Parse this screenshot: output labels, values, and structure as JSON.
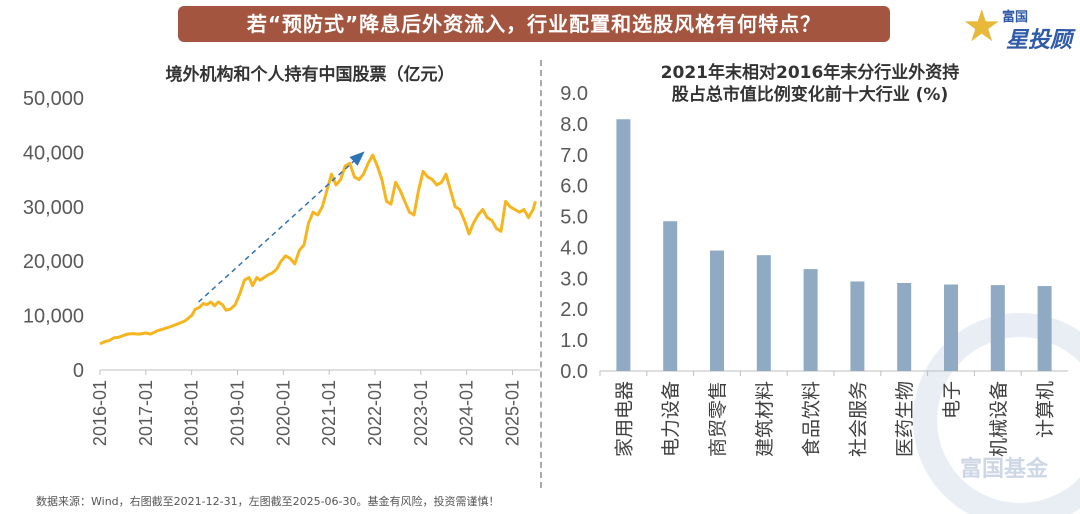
{
  "header": {
    "banner": "若“预防式”降息后外资流入，行业配置和选股风格有何特点？",
    "logo_top": "富国",
    "logo_bottom": "星投顾",
    "watermark": "富国基金"
  },
  "footer": {
    "source": "数据来源：Wind，右图截至2021-12-31，左图截至2025-06-30。基金有风险，投资需谨慎！"
  },
  "colors": {
    "line": "#f6b51e",
    "bar": "#8faac2",
    "arrow": "#2e74b5",
    "banner": "#a4553f"
  },
  "chart_data": [
    {
      "type": "line",
      "title": "境外机构和个人持有中国股票（亿元）",
      "x_ticks": [
        "2016-01",
        "2017-01",
        "2018-01",
        "2019-01",
        "2020-01",
        "2021-01",
        "2022-01",
        "2023-01",
        "2024-01",
        "2025-01"
      ],
      "ylim": [
        0,
        50000
      ],
      "y_ticks": [
        "0",
        "10,000",
        "20,000",
        "30,000",
        "40,000",
        "50,000"
      ],
      "y_tick_values": [
        0,
        10000,
        20000,
        30000,
        40000,
        50000
      ],
      "series": [
        {
          "name": "境外机构和个人持有中国股票",
          "points": [
            [
              2016.0,
              4800
            ],
            [
              2016.1,
              5200
            ],
            [
              2016.2,
              5400
            ],
            [
              2016.3,
              5900
            ],
            [
              2016.4,
              6000
            ],
            [
              2016.5,
              6300
            ],
            [
              2016.6,
              6600
            ],
            [
              2016.7,
              6700
            ],
            [
              2016.85,
              6600
            ],
            [
              2017.0,
              6800
            ],
            [
              2017.1,
              6600
            ],
            [
              2017.25,
              7200
            ],
            [
              2017.4,
              7600
            ],
            [
              2017.55,
              8000
            ],
            [
              2017.7,
              8500
            ],
            [
              2017.85,
              9000
            ],
            [
              2018.0,
              10000
            ],
            [
              2018.08,
              11200
            ],
            [
              2018.17,
              11500
            ],
            [
              2018.25,
              12200
            ],
            [
              2018.33,
              12000
            ],
            [
              2018.42,
              12500
            ],
            [
              2018.5,
              11800
            ],
            [
              2018.58,
              12500
            ],
            [
              2018.67,
              12000
            ],
            [
              2018.75,
              11000
            ],
            [
              2018.85,
              11200
            ],
            [
              2018.95,
              12000
            ],
            [
              2019.05,
              14000
            ],
            [
              2019.15,
              16500
            ],
            [
              2019.25,
              17000
            ],
            [
              2019.33,
              15500
            ],
            [
              2019.42,
              17000
            ],
            [
              2019.5,
              16500
            ],
            [
              2019.58,
              17000
            ],
            [
              2019.67,
              17500
            ],
            [
              2019.75,
              17800
            ],
            [
              2019.85,
              18500
            ],
            [
              2019.95,
              20000
            ],
            [
              2020.05,
              21000
            ],
            [
              2020.15,
              20500
            ],
            [
              2020.25,
              19500
            ],
            [
              2020.35,
              22000
            ],
            [
              2020.45,
              23000
            ],
            [
              2020.55,
              27000
            ],
            [
              2020.65,
              29000
            ],
            [
              2020.75,
              28500
            ],
            [
              2020.85,
              30000
            ],
            [
              2020.95,
              33000
            ],
            [
              2021.05,
              36000
            ],
            [
              2021.15,
              34000
            ],
            [
              2021.25,
              35000
            ],
            [
              2021.35,
              37500
            ],
            [
              2021.45,
              38000
            ],
            [
              2021.55,
              35500
            ],
            [
              2021.65,
              35000
            ],
            [
              2021.75,
              36000
            ],
            [
              2021.85,
              38000
            ],
            [
              2021.95,
              39500
            ],
            [
              2022.05,
              37500
            ],
            [
              2022.15,
              35000
            ],
            [
              2022.25,
              31000
            ],
            [
              2022.35,
              30500
            ],
            [
              2022.45,
              34500
            ],
            [
              2022.55,
              33000
            ],
            [
              2022.65,
              31000
            ],
            [
              2022.75,
              29000
            ],
            [
              2022.85,
              28500
            ],
            [
              2022.95,
              33000
            ],
            [
              2023.05,
              36500
            ],
            [
              2023.15,
              35500
            ],
            [
              2023.25,
              35000
            ],
            [
              2023.35,
              34000
            ],
            [
              2023.45,
              34500
            ],
            [
              2023.55,
              36000
            ],
            [
              2023.65,
              33000
            ],
            [
              2023.75,
              30000
            ],
            [
              2023.85,
              29500
            ],
            [
              2023.95,
              27500
            ],
            [
              2024.05,
              25000
            ],
            [
              2024.15,
              27000
            ],
            [
              2024.25,
              28500
            ],
            [
              2024.35,
              29500
            ],
            [
              2024.45,
              28000
            ],
            [
              2024.55,
              27500
            ],
            [
              2024.65,
              26000
            ],
            [
              2024.75,
              25500
            ],
            [
              2024.85,
              31000
            ],
            [
              2024.95,
              30000
            ],
            [
              2025.05,
              29500
            ],
            [
              2025.15,
              29000
            ],
            [
              2025.25,
              29500
            ],
            [
              2025.35,
              28000
            ],
            [
              2025.45,
              29500
            ],
            [
              2025.5,
              31000
            ]
          ]
        }
      ],
      "annotation": {
        "type": "arrow",
        "from": [
          2018.15,
          12500
        ],
        "to": [
          2021.75,
          40000
        ]
      }
    },
    {
      "type": "bar",
      "title_lines": [
        "2021年末相对2016年末分行业外资持",
        "股占总市值比例变化前十大行业 (%)"
      ],
      "categories": [
        "家用电器",
        "电力设备",
        "商贸零售",
        "建筑材料",
        "食品饮料",
        "社会服务",
        "医药生物",
        "电子",
        "机械设备",
        "计算机"
      ],
      "values": [
        8.15,
        4.85,
        3.9,
        3.75,
        3.3,
        2.9,
        2.85,
        2.8,
        2.78,
        2.75
      ],
      "ylim": [
        0,
        9
      ],
      "y_ticks": [
        "0.0",
        "1.0",
        "2.0",
        "3.0",
        "4.0",
        "5.0",
        "6.0",
        "7.0",
        "8.0",
        "9.0"
      ],
      "y_tick_values": [
        0,
        1,
        2,
        3,
        4,
        5,
        6,
        7,
        8,
        9
      ]
    }
  ]
}
